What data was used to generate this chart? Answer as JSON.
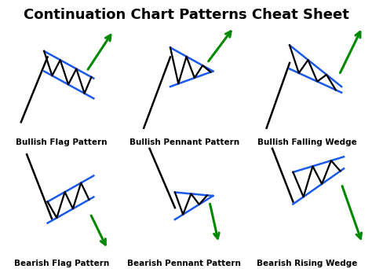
{
  "title": "Continuation Chart Patterns Cheat Sheet",
  "title_fontsize": 13,
  "label_fontsize": 7.5,
  "background_color": "#ffffff",
  "black": "#000000",
  "blue": "#1a5aeb",
  "green": "#008800",
  "patterns": [
    {
      "name": "Bullish Flag Pattern"
    },
    {
      "name": "Bullish Pennant Pattern"
    },
    {
      "name": "Bullish Falling Wedge"
    },
    {
      "name": "Bearish Flag Pattern"
    },
    {
      "name": "Bearish Pennant Pattern"
    },
    {
      "name": "Bearish Rising Wedge"
    }
  ]
}
